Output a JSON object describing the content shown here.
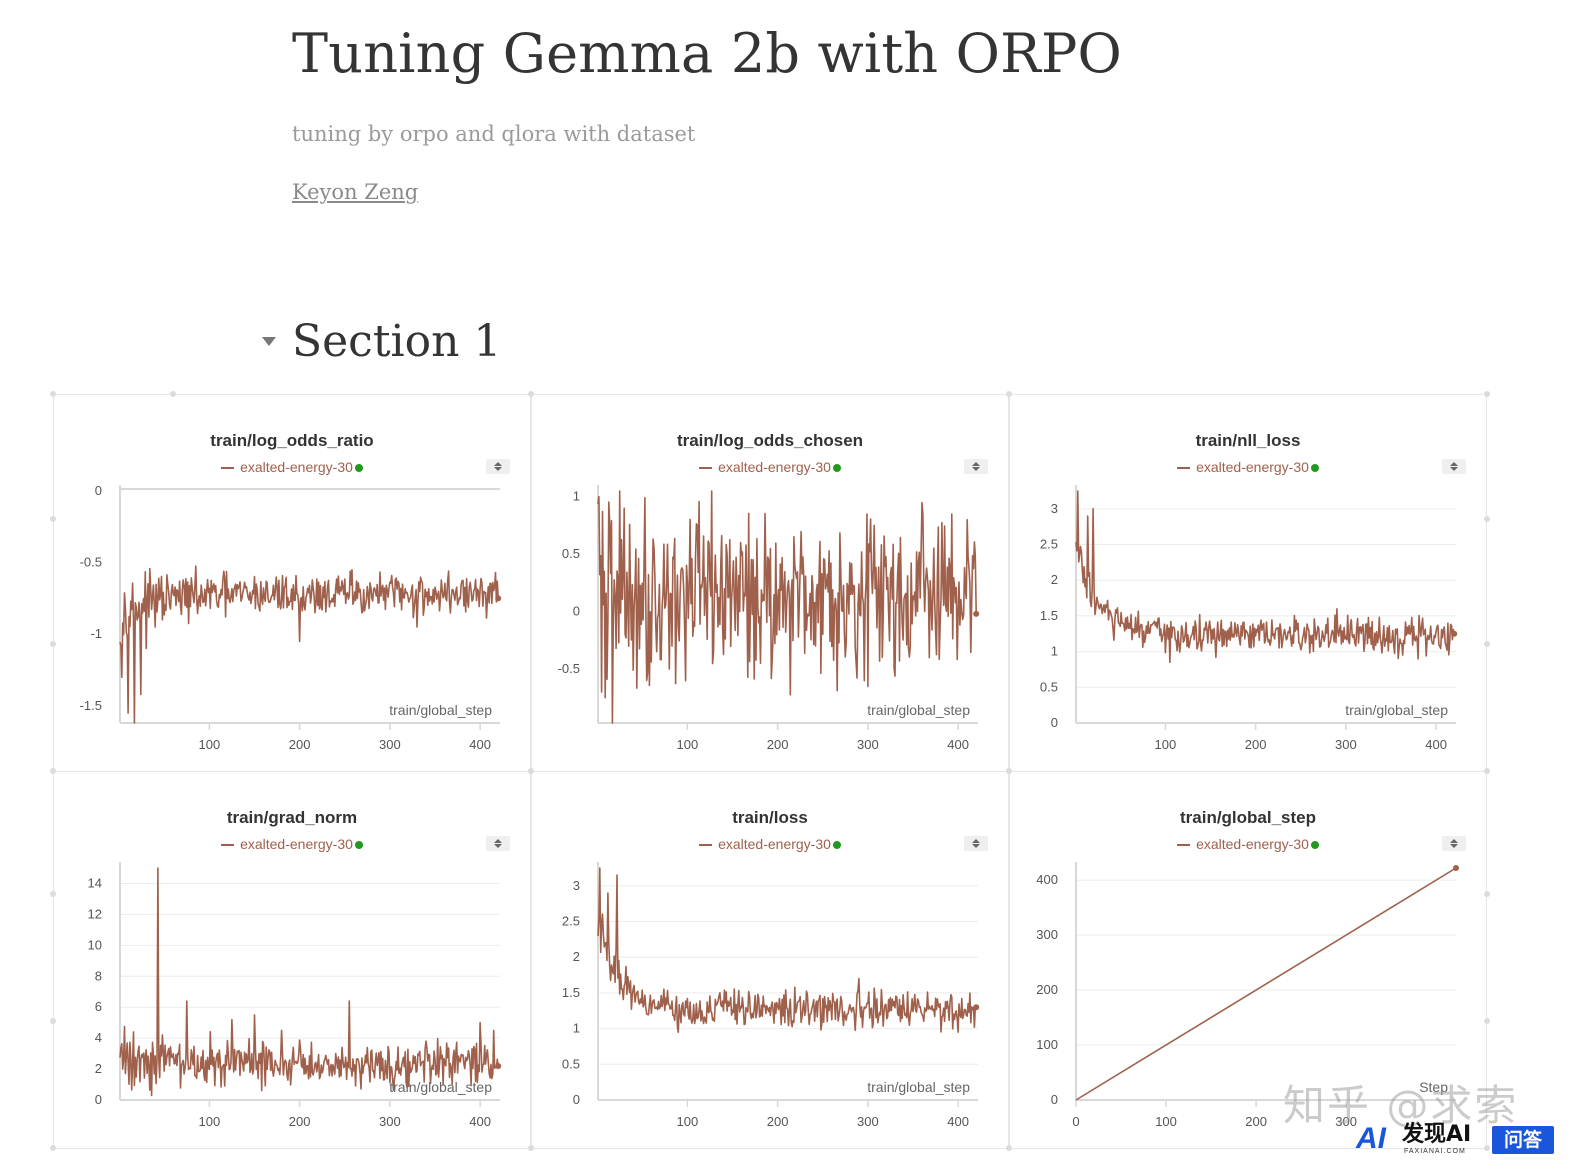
{
  "page": {
    "title": "Tuning Gemma 2b with ORPO",
    "subtitle": "tuning by orpo and qlora with dataset",
    "author": "Keyon Zeng"
  },
  "section": {
    "title": "Section 1",
    "toggle_icon": "triangle-down-icon"
  },
  "legend_run": "exalted-energy-30",
  "colors": {
    "series": "#a0614c",
    "run_status": "#1f9a1f",
    "grid": "#ececec",
    "axis": "#d8d8d8"
  },
  "watermark": {
    "text": "知乎 @求索"
  },
  "badge": {
    "main": "发现AI",
    "sub": "FAXIANAI.COM",
    "tag": "问答",
    "logo": "AI"
  },
  "charts": [
    {
      "title": "train/log_odds_ratio",
      "xlabel": "train/global_step",
      "chart_data": {
        "type": "line",
        "series_name": "exalted-energy-30",
        "xlim": [
          1,
          422
        ],
        "ylim": [
          -1.62,
          0
        ],
        "xticks": [
          100,
          200,
          300,
          400
        ],
        "xtick_labels": [
          "100",
          "200",
          "300",
          "400"
        ],
        "yticks": [
          0,
          -0.5,
          -1,
          -1.5
        ],
        "ytick_labels": [
          "0",
          "-0.5",
          "-1",
          "-1.5"
        ],
        "grid": false,
        "box_top": true,
        "pattern": {
          "n": 420,
          "mean_start": -0.85,
          "mean_end": -0.72,
          "tau": 40,
          "noise": 0.07,
          "spikes": [
            [
              3,
              -1.3
            ],
            [
              10,
              -1.55
            ],
            [
              17,
              -1.62
            ],
            [
              24,
              -1.42
            ],
            [
              30,
              -1.1
            ],
            [
              40,
              -0.95
            ],
            [
              258,
              -0.55
            ],
            [
              200,
              -1.05
            ],
            [
              330,
              -0.95
            ]
          ],
          "last": -0.75
        }
      }
    },
    {
      "title": "train/log_odds_chosen",
      "xlabel": "train/global_step",
      "chart_data": {
        "type": "line",
        "series_name": "exalted-energy-30",
        "xlim": [
          1,
          422
        ],
        "ylim": [
          -0.97,
          1.05
        ],
        "xticks": [
          100,
          200,
          300,
          400
        ],
        "xtick_labels": [
          "100",
          "200",
          "300",
          "400"
        ],
        "yticks": [
          1,
          0.5,
          0,
          -0.5
        ],
        "ytick_labels": [
          "1",
          "0.5",
          "0",
          "-0.5"
        ],
        "grid": false,
        "box_top": false,
        "pattern": {
          "n": 420,
          "mean_start": 0.18,
          "mean_end": 0.15,
          "tau": 40,
          "noise": 0.33,
          "spikes": [
            [
              2,
              1.0
            ],
            [
              5,
              -0.7
            ],
            [
              9,
              -0.75
            ],
            [
              17,
              -0.97
            ],
            [
              30,
              0.9
            ],
            [
              80,
              -0.5
            ],
            [
              360,
              0.95
            ],
            [
              410,
              0.8
            ]
          ],
          "last": -0.02
        }
      }
    },
    {
      "title": "train/nll_loss",
      "xlabel": "train/global_step",
      "chart_data": {
        "type": "line",
        "series_name": "exalted-energy-30",
        "xlim": [
          1,
          422
        ],
        "ylim": [
          0,
          3.25
        ],
        "xticks": [
          100,
          200,
          300,
          400
        ],
        "xtick_labels": [
          "100",
          "200",
          "300",
          "400"
        ],
        "yticks": [
          0,
          0.5,
          1,
          1.5,
          2,
          2.5,
          3
        ],
        "ytick_labels": [
          "0",
          "0.5",
          "1",
          "1.5",
          "2",
          "2.5",
          "3"
        ],
        "grid": true,
        "box_top": false,
        "pattern": {
          "n": 420,
          "mean_start": 2.4,
          "mean_end": 1.22,
          "tau": 25,
          "noise": 0.12,
          "spikes": [
            [
              3,
              3.25
            ],
            [
              20,
              3.0
            ],
            [
              14,
              2.9
            ],
            [
              105,
              0.85
            ],
            [
              290,
              1.6
            ],
            [
              380,
              0.9
            ]
          ],
          "last": 1.25
        }
      }
    },
    {
      "title": "train/grad_norm",
      "xlabel": "train/global_step",
      "chart_data": {
        "type": "line",
        "series_name": "exalted-energy-30",
        "xlim": [
          1,
          422
        ],
        "ylim": [
          0,
          15
        ],
        "xticks": [
          100,
          200,
          300,
          400
        ],
        "xtick_labels": [
          "100",
          "200",
          "300",
          "400"
        ],
        "yticks": [
          0,
          2,
          4,
          6,
          8,
          10,
          12,
          14
        ],
        "ytick_labels": [
          "0",
          "2",
          "4",
          "6",
          "8",
          "10",
          "12",
          "14"
        ],
        "grid": true,
        "box_top": false,
        "pattern": {
          "n": 420,
          "mean_start": 2.8,
          "mean_end": 2.3,
          "tau": 60,
          "noise": 0.7,
          "spikes": [
            [
              43,
              15
            ],
            [
              75,
              6.4
            ],
            [
              125,
              5.2
            ],
            [
              150,
              5.5
            ],
            [
              255,
              6.4
            ],
            [
              180,
              4.5
            ],
            [
              400,
              5.0
            ],
            [
              415,
              4.5
            ]
          ],
          "last": 2.2
        }
      }
    },
    {
      "title": "train/loss",
      "xlabel": "train/global_step",
      "chart_data": {
        "type": "line",
        "series_name": "exalted-energy-30",
        "xlim": [
          1,
          422
        ],
        "ylim": [
          0,
          3.25
        ],
        "xticks": [
          100,
          200,
          300,
          400
        ],
        "xtick_labels": [
          "100",
          "200",
          "300",
          "400"
        ],
        "yticks": [
          0,
          0.5,
          1,
          1.5,
          2,
          2.5,
          3
        ],
        "ytick_labels": [
          "0",
          "0.5",
          "1",
          "1.5",
          "2",
          "2.5",
          "3"
        ],
        "grid": true,
        "box_top": false,
        "pattern": {
          "n": 420,
          "mean_start": 2.45,
          "mean_end": 1.27,
          "tau": 25,
          "noise": 0.12,
          "spikes": [
            [
              3,
              3.25
            ],
            [
              22,
              3.15
            ],
            [
              12,
              2.9
            ],
            [
              90,
              0.95
            ],
            [
              290,
              1.7
            ],
            [
              400,
              0.95
            ]
          ],
          "last": 1.3
        }
      }
    },
    {
      "title": "train/global_step",
      "xlabel": "Step",
      "chart_data": {
        "type": "line",
        "series_name": "exalted-energy-30",
        "xlim": [
          0,
          422
        ],
        "ylim": [
          0,
          422
        ],
        "xticks": [
          0,
          100,
          200,
          300
        ],
        "xtick_labels": [
          "0",
          "100",
          "200",
          "300"
        ],
        "yticks": [
          0,
          100,
          200,
          300,
          400
        ],
        "ytick_labels": [
          "0",
          "100",
          "200",
          "300",
          "400"
        ],
        "grid": true,
        "box_top": false,
        "x": [
          0,
          422
        ],
        "y": [
          0,
          422
        ]
      }
    }
  ]
}
